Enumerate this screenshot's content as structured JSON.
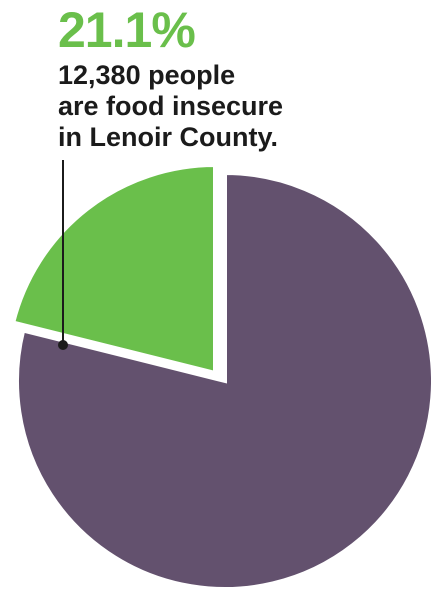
{
  "callout": {
    "percent": "21.1%",
    "lines": [
      "12,380 people",
      "are food insecure",
      "in Lenoir County."
    ]
  },
  "colors": {
    "food_insecure": "#6abf4b",
    "not_food_insecure": "#63516e",
    "percent_text": "#6abf4b"
  },
  "chart_data": {
    "type": "pie",
    "title": "",
    "slices": [
      {
        "label": "21.1%",
        "value": 21.1,
        "color": "#6abf4b",
        "exploded": true
      },
      {
        "label": "",
        "value": 78.9,
        "color": "#63516e",
        "exploded": false
      }
    ],
    "legend": "none"
  }
}
